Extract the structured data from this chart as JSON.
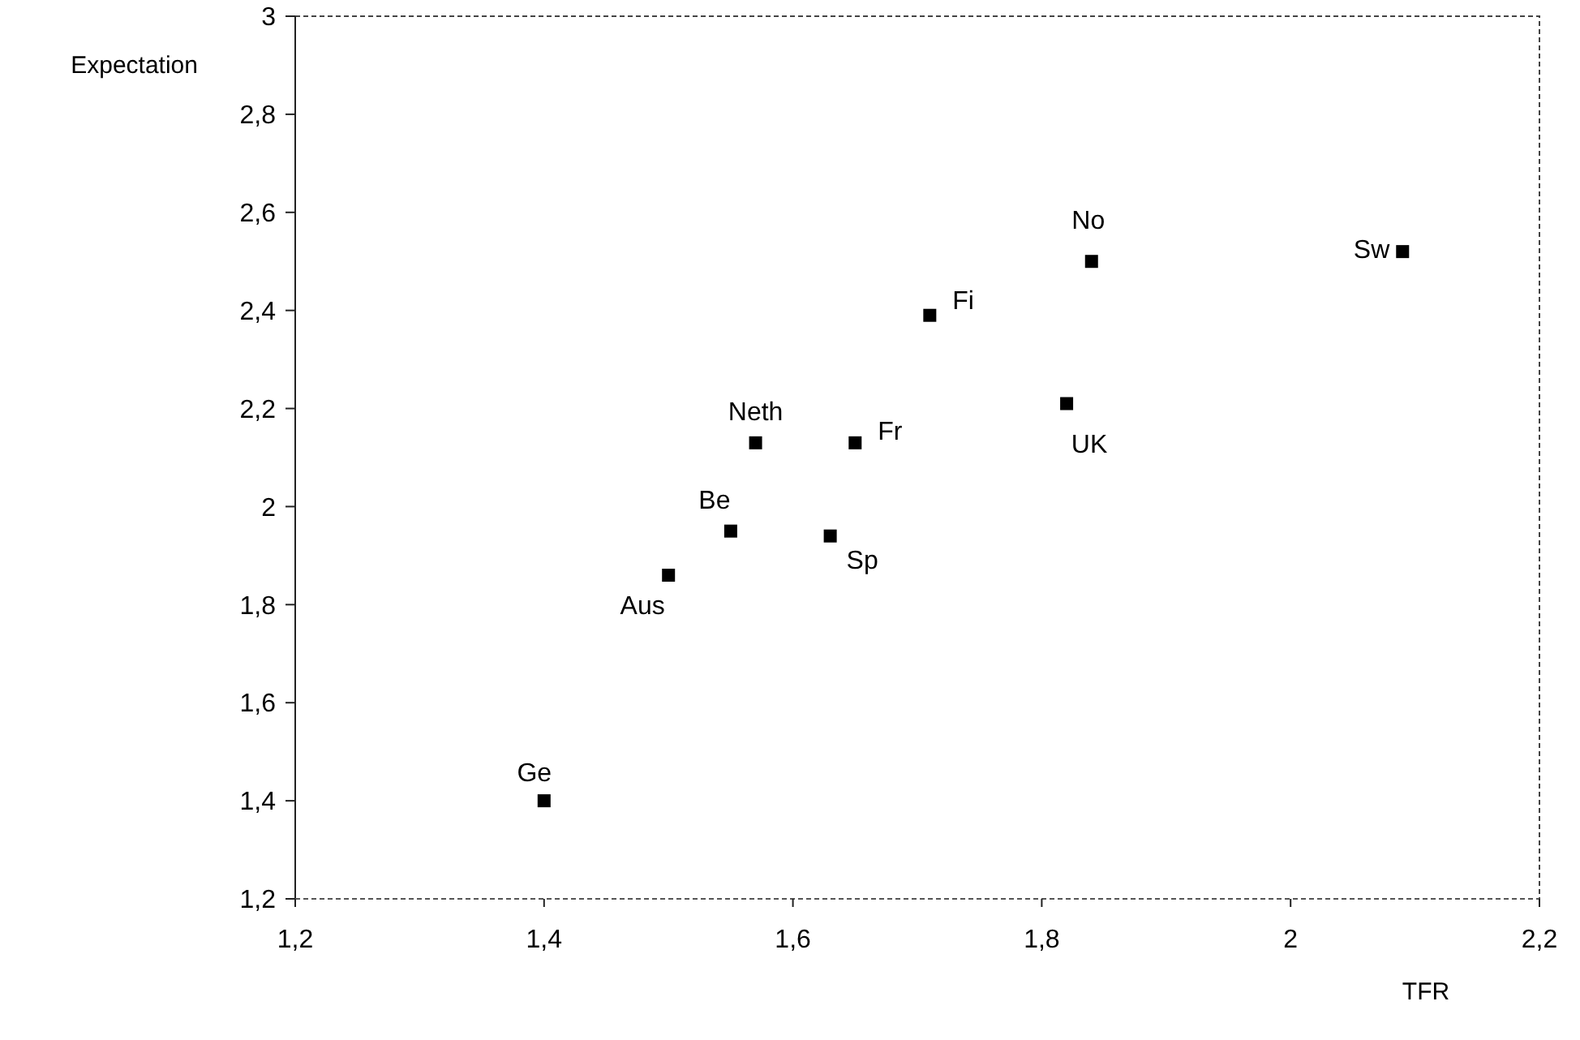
{
  "chart_data": {
    "type": "scatter",
    "xlabel": "TFR",
    "ylabel": "Expectation",
    "x": [
      1.4,
      1.5,
      1.55,
      1.57,
      1.63,
      1.65,
      1.71,
      1.84,
      1.82,
      2.09
    ],
    "series": [
      {
        "color": "#000000",
        "values": [
          1.4,
          1.86,
          1.95,
          2.13,
          1.94,
          2.13,
          2.39,
          2.5,
          2.21,
          2.52
        ]
      }
    ],
    "marker": "square",
    "grid": false,
    "xlim": [
      1.2,
      2.2
    ],
    "xticks": [
      {
        "value": 1.2,
        "label": "1,2"
      },
      {
        "value": 1.4,
        "label": "1,4"
      },
      {
        "value": 1.6,
        "label": "1,6"
      },
      {
        "value": 1.8,
        "label": "1,8"
      },
      {
        "value": 2,
        "label": "2"
      },
      {
        "value": 2.2,
        "label": "2,2"
      }
    ],
    "ylim": [
      1.2,
      3
    ],
    "yticks": [
      {
        "value": 1.2,
        "label": "1,2"
      },
      {
        "value": 1.4,
        "label": "1,4"
      },
      {
        "value": 1.6,
        "label": "1,6"
      },
      {
        "value": 1.8,
        "label": "1,8"
      },
      {
        "value": 2,
        "label": "2"
      },
      {
        "value": 2.2,
        "label": "2,2"
      },
      {
        "value": 2.4,
        "label": "2,4"
      },
      {
        "value": 2.6,
        "label": "2,6"
      },
      {
        "value": 2.8,
        "label": "2,8"
      },
      {
        "value": 3,
        "label": "3"
      }
    ],
    "annotations": [
      {
        "text": "Ge",
        "x": 1.4,
        "y": 1.4
      },
      {
        "text": "Aus",
        "x": 1.5,
        "y": 1.86
      },
      {
        "text": "Be",
        "x": 1.55,
        "y": 1.95
      },
      {
        "text": "Neth",
        "x": 1.57,
        "y": 2.13
      },
      {
        "text": "Sp",
        "x": 1.63,
        "y": 1.94
      },
      {
        "text": "Fr",
        "x": 1.65,
        "y": 2.13
      },
      {
        "text": "Fi",
        "x": 1.71,
        "y": 2.39
      },
      {
        "text": "No",
        "x": 1.84,
        "y": 2.5
      },
      {
        "text": "UK",
        "x": 1.82,
        "y": 2.21
      },
      {
        "text": "Sw",
        "x": 2.09,
        "y": 2.52
      }
    ]
  }
}
